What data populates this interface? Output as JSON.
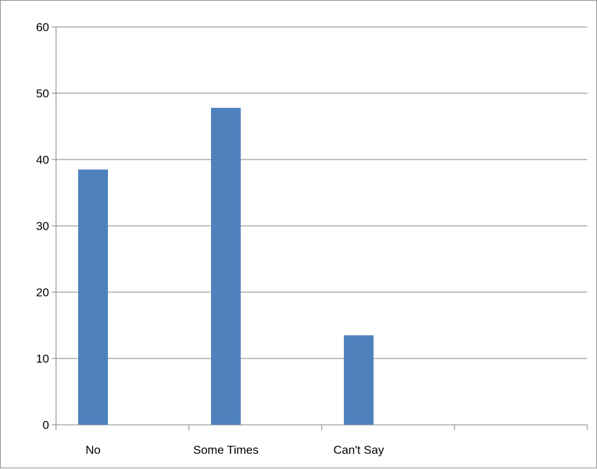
{
  "chart_data": {
    "type": "bar",
    "title": "",
    "xlabel": "",
    "ylabel": "",
    "categories": [
      "No",
      "Some Times",
      "Can't Say",
      ""
    ],
    "series": [
      {
        "values": [
          38.5,
          47.8,
          13.5,
          null
        ]
      }
    ],
    "ylim": [
      0,
      60
    ],
    "yticks": [
      "0",
      "10",
      "20",
      "30",
      "40",
      "50",
      "60"
    ],
    "grid": true,
    "legend": "none",
    "colors": {
      "bar": "#4f81bd",
      "grid": "#808080",
      "axis": "#808080"
    }
  }
}
